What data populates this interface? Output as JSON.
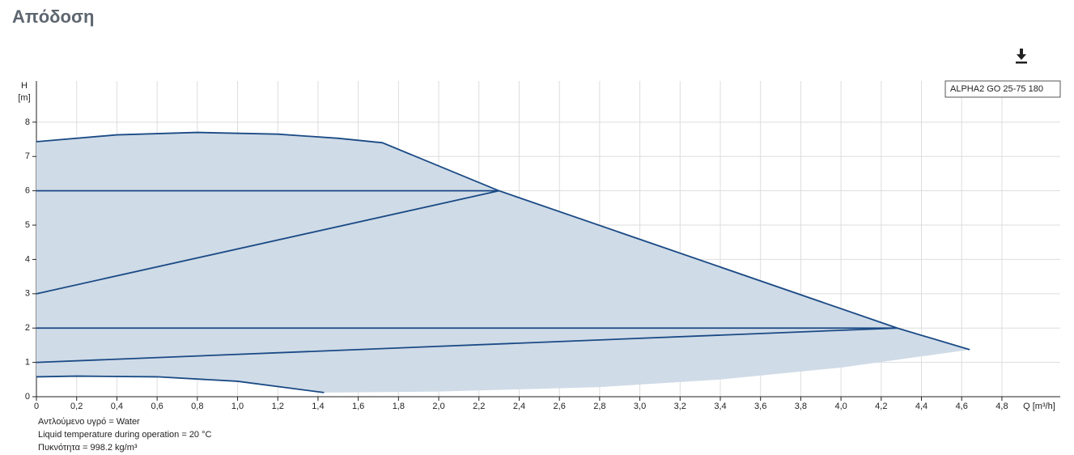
{
  "page_title": "Απόδοση",
  "chart_data": {
    "type": "line",
    "ylabel": "H",
    "yunit": "[m]",
    "xlabel": "Q [m³/h]",
    "legend_label": "ALPHA2 GO 25-75 180",
    "legend_position": "upper right",
    "xlim": [
      0,
      5.09
    ],
    "ylim": [
      0,
      9.2
    ],
    "grid": true,
    "xticks": [
      0,
      {
        "value": 0.2,
        "label": "0,2"
      },
      {
        "value": 0.4,
        "label": "0,4"
      },
      {
        "value": 0.6,
        "label": "0,6"
      },
      {
        "value": 0.8,
        "label": "0,8"
      },
      {
        "value": 1,
        "label": "1,0"
      },
      {
        "value": 1.2,
        "label": "1,2"
      },
      {
        "value": 1.4,
        "label": "1,4"
      },
      {
        "value": 1.6,
        "label": "1,6"
      },
      {
        "value": 1.8,
        "label": "1,8"
      },
      {
        "value": 2,
        "label": "2,0"
      },
      {
        "value": 2.2,
        "label": "2,2"
      },
      {
        "value": 2.4,
        "label": "2,4"
      },
      {
        "value": 2.6,
        "label": "2,6"
      },
      {
        "value": 2.8,
        "label": "2,8"
      },
      {
        "value": 3,
        "label": "3,0"
      },
      {
        "value": 3.2,
        "label": "3,2"
      },
      {
        "value": 3.4,
        "label": "3,4"
      },
      {
        "value": 3.6,
        "label": "3,6"
      },
      {
        "value": 3.8,
        "label": "3,8"
      },
      {
        "value": 4,
        "label": "4,0"
      },
      {
        "value": 4.2,
        "label": "4,2"
      },
      {
        "value": 4.4,
        "label": "4,4"
      },
      {
        "value": 4.6,
        "label": "4,6"
      },
      {
        "value": 4.8,
        "label": "4,8"
      }
    ],
    "yticks": [
      0,
      1,
      2,
      3,
      4,
      5,
      6,
      7,
      8
    ],
    "area": {
      "color": "#cfdbe7",
      "x": [
        0,
        0.4,
        0.8,
        1.2,
        1.5,
        1.72,
        2.3,
        4.28,
        4.64,
        4.0,
        3.4,
        2.8,
        2.0,
        1.43,
        1.0,
        0.6,
        0.2,
        0
      ],
      "y": [
        7.43,
        7.63,
        7.7,
        7.65,
        7.53,
        7.4,
        6.0,
        2.0,
        1.37,
        0.85,
        0.5,
        0.28,
        0.15,
        0.12,
        0.45,
        0.58,
        0.6,
        0.58
      ]
    },
    "series": [
      {
        "color": "#1a4a85",
        "x": [
          0,
          0.4,
          0.8,
          1.2,
          1.5,
          1.72,
          2.3,
          4.28,
          4.64
        ],
        "values": [
          7.43,
          7.63,
          7.7,
          7.65,
          7.53,
          7.4,
          6.0,
          2.0,
          1.37
        ]
      },
      {
        "color": "#1a4a85",
        "x": [
          0,
          2.3
        ],
        "values": [
          6,
          6
        ]
      },
      {
        "color": "#1a4a85",
        "x": [
          0,
          2.3
        ],
        "values": [
          3,
          6
        ]
      },
      {
        "color": "#1a4a85",
        "x": [
          0,
          4.28
        ],
        "values": [
          2,
          2
        ]
      },
      {
        "color": "#1a4a85",
        "x": [
          0,
          4.28
        ],
        "values": [
          1,
          2
        ]
      },
      {
        "color": "#1a4a85",
        "x": [
          0,
          0.2,
          0.6,
          1.0,
          1.43
        ],
        "values": [
          0.58,
          0.6,
          0.58,
          0.45,
          0.12
        ]
      }
    ],
    "notes": [
      "Αντλούμενο υγρό = Water",
      "Liquid temperature during operation = 20 °C",
      "Πυκνότητα = 998.2 kg/m³"
    ]
  }
}
